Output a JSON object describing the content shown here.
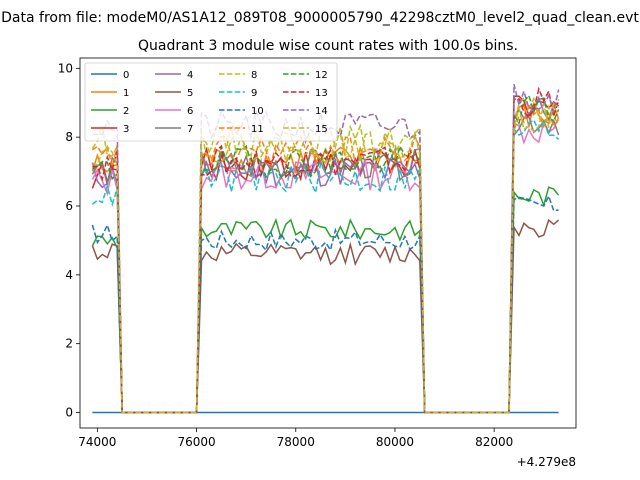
{
  "chart_data": {
    "type": "line",
    "suptitle": "Data from file: modeM0/AS1A12_089T08_9000005790_42298cztM0_level2_quad_clean.evt",
    "title": "Quadrant 3 module wise count rates with 100.0s bins.",
    "xlabel": "",
    "ylabel": "",
    "x_offset_label": "+4.279e8",
    "xlim": [
      73650,
      83650
    ],
    "ylim": [
      -0.45,
      10.3
    ],
    "x_ticks": [
      74000,
      76000,
      78000,
      80000,
      82000
    ],
    "x_tick_labels": [
      "74000",
      "76000",
      "78000",
      "80000",
      "82000"
    ],
    "y_ticks": [
      0,
      2,
      4,
      6,
      8,
      10
    ],
    "y_tick_labels": [
      "0",
      "2",
      "4",
      "6",
      "8",
      "10"
    ],
    "grid": false,
    "legend_position": "top-left",
    "segments": [
      {
        "x_start": 73900,
        "x_end": 74400,
        "zero_after": [
          74500,
          76000
        ]
      },
      {
        "x_start": 76100,
        "x_end": 80500,
        "zero_after": [
          80600,
          82300
        ]
      },
      {
        "x_start": 82400,
        "x_end": 83300,
        "zero_after": null
      }
    ],
    "series": [
      {
        "name": "0",
        "color": "#1f77b4",
        "dash": "solid",
        "levels": [
          0,
          0,
          0
        ]
      },
      {
        "name": "1",
        "color": "#ff7f0e",
        "dash": "solid",
        "levels": [
          7.1,
          7.3,
          8.6
        ]
      },
      {
        "name": "2",
        "color": "#2ca02c",
        "dash": "solid",
        "levels": [
          5.0,
          5.3,
          6.3
        ]
      },
      {
        "name": "3",
        "color": "#d62728",
        "dash": "solid",
        "levels": [
          6.9,
          7.2,
          8.8
        ]
      },
      {
        "name": "4",
        "color": "#9467bd",
        "dash": "solid",
        "levels": [
          6.9,
          7.0,
          8.8
        ]
      },
      {
        "name": "5",
        "color": "#8c564b",
        "dash": "solid",
        "levels": [
          4.7,
          4.6,
          5.4
        ]
      },
      {
        "name": "6",
        "color": "#e377c2",
        "dash": "solid",
        "levels": [
          6.7,
          6.9,
          8.2
        ]
      },
      {
        "name": "7",
        "color": "#7f7f7f",
        "dash": "solid",
        "levels": [
          7.0,
          7.2,
          8.5
        ]
      },
      {
        "name": "8",
        "color": "#bcbd22",
        "dash": "dashed",
        "levels": [
          7.9,
          7.9,
          8.7
        ]
      },
      {
        "name": "9",
        "color": "#17becf",
        "dash": "dashed",
        "levels": [
          6.3,
          6.8,
          8.2
        ]
      },
      {
        "name": "10",
        "color": "#1f77b4",
        "dash": "dashed",
        "levels": [
          5.2,
          5.0,
          6.0
        ]
      },
      {
        "name": "11",
        "color": "#ff7f0e",
        "dash": "dashed",
        "levels": [
          7.4,
          7.6,
          8.6
        ]
      },
      {
        "name": "12",
        "color": "#2ca02c",
        "dash": "dashed",
        "levels": [
          7.0,
          7.3,
          8.8
        ]
      },
      {
        "name": "13",
        "color": "#d62728",
        "dash": "dashed",
        "levels": [
          7.2,
          7.3,
          9.0
        ]
      },
      {
        "name": "14",
        "color": "#9467bd",
        "dash": "dashed",
        "levels": [
          8.3,
          8.3,
          9.2
        ]
      },
      {
        "name": "15",
        "color": "#bcbd22",
        "dash": "dashed",
        "levels": [
          7.6,
          7.7,
          8.6
        ]
      }
    ]
  }
}
